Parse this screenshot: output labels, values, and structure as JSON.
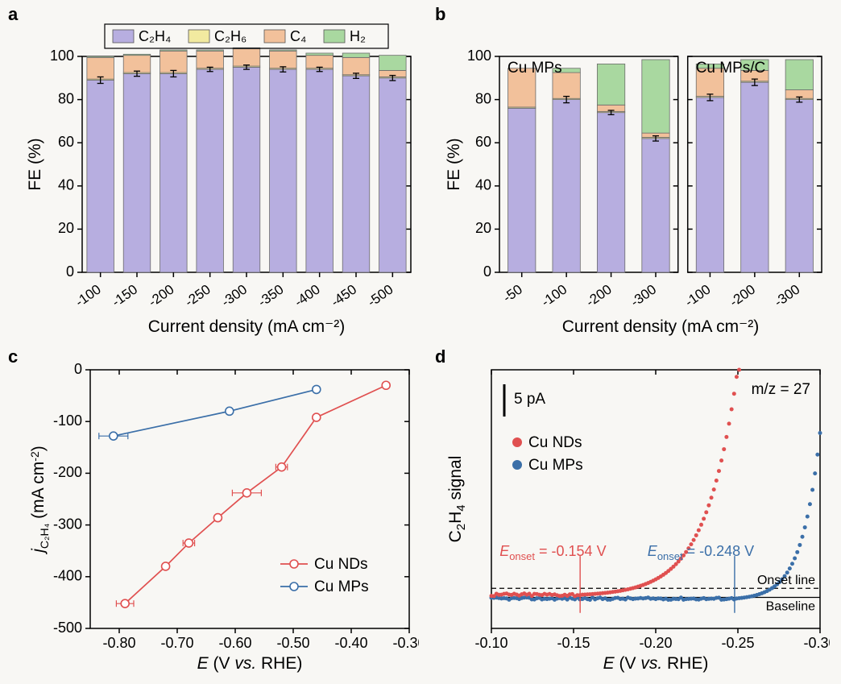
{
  "colors": {
    "background": "#f8f7f4",
    "axis": "#000000",
    "tick": "#000000",
    "grid": "#e0e0e0",
    "c2h4": "#b7aee0",
    "c2h6": "#f2eaa0",
    "c4": "#f2c19b",
    "h2": "#a9d8a0",
    "bar_border": "#6b6b6b",
    "error_bar": "#000000",
    "cu_nds": "#e05050",
    "cu_mps": "#3b6fa8",
    "onset_line": "#000000",
    "baseline": "#000000"
  },
  "panel_a": {
    "label": "a",
    "ylabel": "FE (%)",
    "xlabel": "Current density (mA cm⁻²)",
    "ylim": [
      0,
      100
    ],
    "ytick_step": 20,
    "categories": [
      "-100",
      "-150",
      "-200",
      "-250",
      "-300",
      "-350",
      "-400",
      "-450",
      "-500"
    ],
    "bar_width": 0.74,
    "legend": {
      "items": [
        {
          "label": "C₂H₄",
          "color": "#b7aee0"
        },
        {
          "label": "C₂H₆",
          "color": "#f2eaa0"
        },
        {
          "label": "C₄",
          "color": "#f2c19b"
        },
        {
          "label": "H₂",
          "color": "#a9d8a0"
        }
      ]
    },
    "series": {
      "c2h4": [
        89,
        92,
        92,
        94,
        95,
        94,
        94,
        91,
        90
      ],
      "c2h6": [
        0.5,
        0.5,
        0.5,
        0.5,
        0.5,
        0.5,
        0.5,
        0.5,
        0.5
      ],
      "c4": [
        10,
        8,
        10,
        8,
        8,
        8,
        6,
        8,
        3
      ],
      "h2": [
        0.5,
        0.5,
        0.5,
        0.5,
        0.5,
        0.5,
        1,
        2,
        7
      ]
    },
    "errors_c2h4": [
      1.5,
      1.2,
      1.5,
      1.0,
      1.0,
      1.2,
      1.0,
      1.2,
      1.2
    ]
  },
  "panel_b": {
    "label": "b",
    "ylabel": "FE (%)",
    "xlabel": "Current density (mA cm⁻²)",
    "ylim": [
      0,
      100
    ],
    "ytick_step": 20,
    "bar_width": 0.62,
    "left": {
      "title": "Cu MPs",
      "categories": [
        "-50",
        "-100",
        "-200",
        "-300"
      ],
      "series": {
        "c2h4": [
          76,
          80,
          74,
          62
        ],
        "c2h6": [
          0.5,
          0.5,
          0.5,
          0.5
        ],
        "c4": [
          18,
          12,
          3,
          2
        ],
        "h2": [
          0,
          2,
          19,
          34
        ]
      },
      "errors_c2h4": [
        0,
        1.5,
        1.0,
        1.2
      ]
    },
    "right": {
      "title": "Cu MPs/C",
      "categories": [
        "-100",
        "-200",
        "-300"
      ],
      "series": {
        "c2h4": [
          81,
          88,
          80
        ],
        "c2h6": [
          0.5,
          0.5,
          0.5
        ],
        "c4": [
          13,
          5,
          4
        ],
        "h2": [
          2,
          5,
          14
        ]
      },
      "errors_c2h4": [
        1.5,
        1.5,
        1.2
      ]
    }
  },
  "panel_c": {
    "label": "c",
    "ylabel": "j_{C₂H₄} (mA cm⁻²)",
    "xlabel": "E (V vs. RHE)",
    "xlim": [
      -0.85,
      -0.3
    ],
    "xticks": [
      -0.8,
      -0.7,
      -0.6,
      -0.5,
      -0.4,
      -0.3
    ],
    "ylim": [
      -500,
      0
    ],
    "ytick_step": 100,
    "marker_size": 5,
    "line_width": 1.7,
    "series": {
      "cu_nds": {
        "label": "Cu NDs",
        "color": "#e05050",
        "points": [
          {
            "x": -0.34,
            "y": -30,
            "ex": 0.005,
            "ey": 5
          },
          {
            "x": -0.46,
            "y": -92,
            "ex": 0.005,
            "ey": 6
          },
          {
            "x": -0.52,
            "y": -188,
            "ex": 0.01,
            "ey": 8
          },
          {
            "x": -0.58,
            "y": -238,
            "ex": 0.025,
            "ey": 8
          },
          {
            "x": -0.63,
            "y": -286,
            "ex": 0.005,
            "ey": 6
          },
          {
            "x": -0.68,
            "y": -335,
            "ex": 0.01,
            "ey": 8
          },
          {
            "x": -0.72,
            "y": -380,
            "ex": 0.005,
            "ey": 8
          },
          {
            "x": -0.79,
            "y": -452,
            "ex": 0.015,
            "ey": 8
          }
        ]
      },
      "cu_mps": {
        "label": "Cu MPs",
        "color": "#3b6fa8",
        "points": [
          {
            "x": -0.46,
            "y": -38,
            "ex": 0.005,
            "ey": 5
          },
          {
            "x": -0.61,
            "y": -80,
            "ex": 0.005,
            "ey": 5
          },
          {
            "x": -0.81,
            "y": -128,
            "ex": 0.025,
            "ey": 5
          }
        ]
      }
    }
  },
  "panel_d": {
    "label": "d",
    "ylabel": "C₂H₄ signal",
    "xlabel": "E (V vs. RHE)",
    "xlim": [
      -0.1,
      -0.3
    ],
    "xticks": [
      -0.1,
      -0.15,
      -0.2,
      -0.25,
      -0.3
    ],
    "mz_label": "m/z = 27",
    "scale_bar": "5 pA",
    "baseline_y": 0.12,
    "onset_line_y": 0.155,
    "marker_size": 2.5,
    "legend": [
      {
        "label": "Cu NDs",
        "color": "#e05050"
      },
      {
        "label": "Cu MPs",
        "color": "#3b6fa8"
      }
    ],
    "onset_labels": {
      "nds": "E_{onset} = -0.154 V",
      "mps": "E_{onset} = -0.248 V"
    },
    "onset_x": {
      "nds": -0.154,
      "mps": -0.248
    },
    "annotation": {
      "onset": "Onset line",
      "baseline": "Baseline"
    },
    "cu_nds_curve": {
      "baseline": 0.13,
      "onset": -0.154,
      "steepness": 52,
      "max": 1.02,
      "noise": 0.012
    },
    "cu_mps_curve": {
      "baseline": 0.115,
      "onset": -0.248,
      "steepness": 90,
      "max": 1.02,
      "noise": 0.009
    }
  }
}
